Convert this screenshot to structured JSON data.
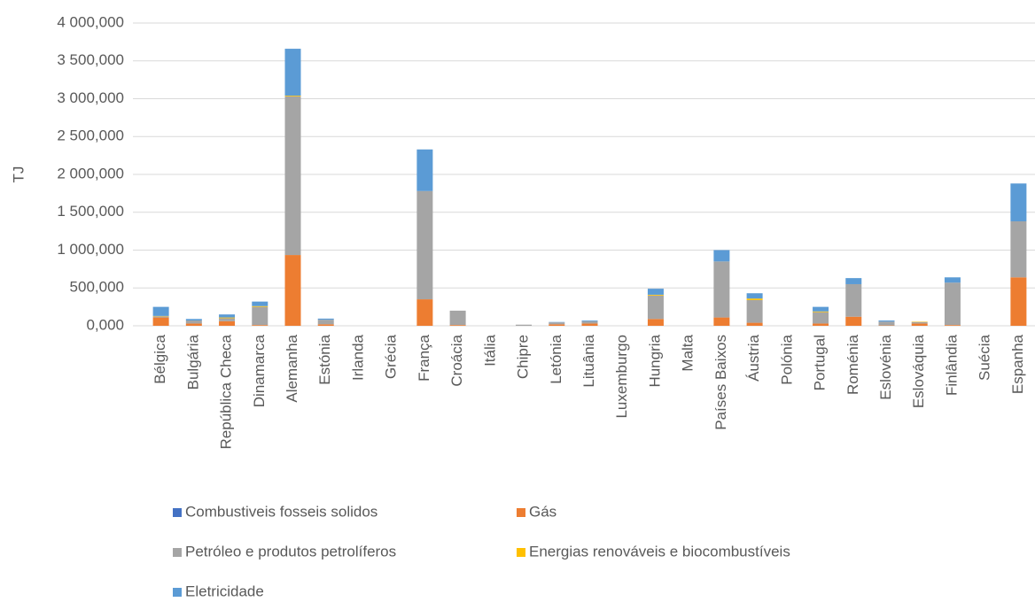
{
  "chart_data": {
    "type": "stacked_bar",
    "y_label": "TJ",
    "categories": [
      "Bélgica",
      "Bulgária",
      "República Checa",
      "Dinamarca",
      "Alemanha",
      "Estónia",
      "Irlanda",
      "Grécia",
      "França",
      "Croácia",
      "Itália",
      "Chipre",
      "Letónia",
      "Lituânia",
      "Luxemburgo",
      "Hungria",
      "Malta",
      "Países Baixos",
      "Áustria",
      "Polónia",
      "Portugal",
      "Roménia",
      "Eslovénia",
      "Eslováquia",
      "Finlândia",
      "Suécia",
      "Espanha"
    ],
    "series": [
      {
        "name": "Combustiveis fosseis solidos",
        "color": "#4472c4",
        "values": [
          0,
          0,
          0,
          0,
          0,
          0,
          0,
          0,
          0,
          0,
          0,
          0,
          0,
          0,
          0,
          0,
          0,
          0,
          0,
          0,
          0,
          0,
          0,
          0,
          0,
          0,
          0
        ]
      },
      {
        "name": "Gás",
        "color": "#ed7d31",
        "values": [
          110000,
          30000,
          60000,
          10000,
          935000,
          20000,
          0,
          0,
          350000,
          10000,
          0,
          0,
          20000,
          30000,
          0,
          90000,
          0,
          110000,
          40000,
          0,
          30000,
          120000,
          5000,
          30000,
          10000,
          0,
          640000
        ]
      },
      {
        "name": "Petróleo e produtos petrolíferos",
        "color": "#a5a5a5",
        "values": [
          15000,
          40000,
          40000,
          240000,
          2095000,
          60000,
          0,
          0,
          1430000,
          190000,
          0,
          15000,
          25000,
          30000,
          0,
          310000,
          0,
          740000,
          300000,
          0,
          150000,
          430000,
          50000,
          20000,
          560000,
          0,
          740000
        ]
      },
      {
        "name": "Energias renováveis e biocombustíveis",
        "color": "#ffc000",
        "values": [
          5000,
          0,
          10000,
          10000,
          10000,
          0,
          0,
          0,
          0,
          0,
          0,
          0,
          0,
          0,
          0,
          10000,
          0,
          0,
          20000,
          0,
          10000,
          0,
          0,
          5000,
          0,
          0,
          0
        ]
      },
      {
        "name": "Eletricidade",
        "color": "#5b9bd5",
        "values": [
          120000,
          20000,
          40000,
          60000,
          620000,
          15000,
          0,
          0,
          550000,
          0,
          0,
          0,
          5000,
          10000,
          0,
          80000,
          0,
          150000,
          70000,
          0,
          60000,
          80000,
          15000,
          0,
          70000,
          0,
          500000
        ]
      }
    ],
    "ylim": [
      0,
      4000000
    ],
    "yticks": [
      {
        "value": 0,
        "label": "0,000"
      },
      {
        "value": 500000,
        "label": "500,000"
      },
      {
        "value": 1000000,
        "label": "1 000,000"
      },
      {
        "value": 1500000,
        "label": "1 500,000"
      },
      {
        "value": 2000000,
        "label": "2 000,000"
      },
      {
        "value": 2500000,
        "label": "2 500,000"
      },
      {
        "value": 3000000,
        "label": "3 000,000"
      },
      {
        "value": 3500000,
        "label": "3 500,000"
      },
      {
        "value": 4000000,
        "label": "4 000,000"
      }
    ],
    "grid": true,
    "legend_position": "bottom"
  }
}
